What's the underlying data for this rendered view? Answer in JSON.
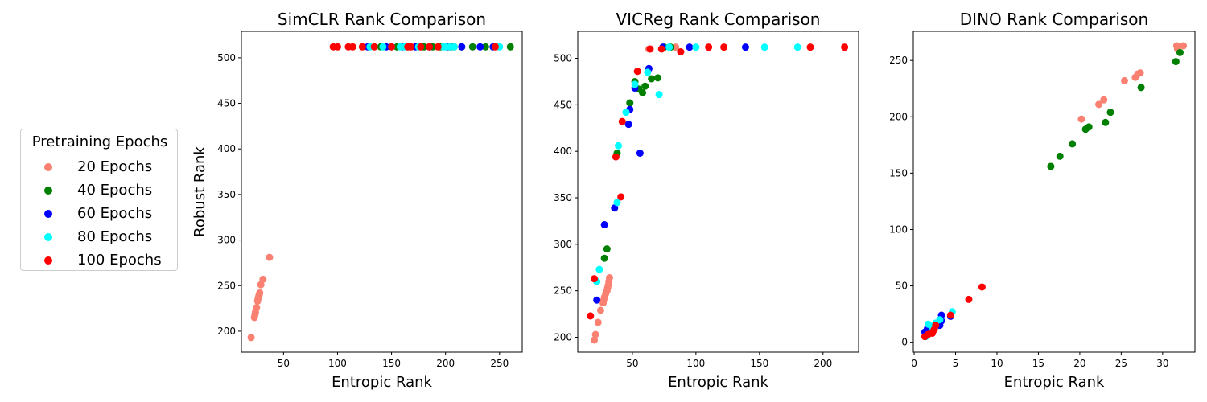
{
  "legend": {
    "title": "Pretraining Epochs",
    "entries": [
      {
        "label": "20 Epochs",
        "color": "#fa8072"
      },
      {
        "label": "40 Epochs",
        "color": "#008000"
      },
      {
        "label": "60 Epochs",
        "color": "#0000ff"
      },
      {
        "label": "80 Epochs",
        "color": "#00ffff"
      },
      {
        "label": "100 Epochs",
        "color": "#ff0000"
      }
    ]
  },
  "chart_data": [
    {
      "type": "scatter",
      "title": "SimCLR Rank Comparison",
      "xlabel": "Entropic Rank",
      "ylabel": "Robust Rank",
      "xlim": [
        11,
        271
      ],
      "ylim": [
        177,
        529
      ],
      "xticks": [
        50,
        100,
        150,
        200,
        250
      ],
      "yticks": [
        200,
        250,
        300,
        350,
        400,
        450,
        500
      ],
      "series": [
        {
          "name": "20 Epochs",
          "color": "#fa8072",
          "points": [
            [
              20,
              193
            ],
            [
              23,
              215
            ],
            [
              23.5,
              218
            ],
            [
              24,
              221
            ],
            [
              25,
              226
            ],
            [
              26,
              233
            ],
            [
              26.5,
              236
            ],
            [
              27,
              238
            ],
            [
              27.5,
              240
            ],
            [
              28,
              242
            ],
            [
              29,
              251
            ],
            [
              31,
              257
            ],
            [
              37,
              281
            ],
            [
              178,
              512
            ],
            [
              248,
              512
            ]
          ]
        },
        {
          "name": "40 Epochs",
          "color": "#008000",
          "points": [
            [
              140,
              512
            ],
            [
              155,
              512
            ],
            [
              165,
              512
            ],
            [
              180,
              512
            ],
            [
              188,
              512
            ],
            [
              195,
              512
            ],
            [
              205,
              512
            ],
            [
              208,
              512
            ],
            [
              215,
              512
            ],
            [
              225,
              512
            ],
            [
              237,
              512
            ],
            [
              260,
              512
            ]
          ]
        },
        {
          "name": "60 Epochs",
          "color": "#0000ff",
          "points": [
            [
              128,
              512
            ],
            [
              145,
              512
            ],
            [
              160,
              512
            ],
            [
              172,
              512
            ],
            [
              185,
              512
            ],
            [
              203,
              512
            ],
            [
              215,
              512
            ],
            [
              232,
              512
            ],
            [
              244,
              512
            ]
          ]
        },
        {
          "name": "80 Epochs",
          "color": "#00ffff",
          "points": [
            [
              130,
              512
            ],
            [
              142,
              512
            ],
            [
              150,
              512
            ],
            [
              158,
              512
            ],
            [
              162,
              512
            ],
            [
              175,
              512
            ],
            [
              198,
              512
            ],
            [
              200,
              512
            ],
            [
              204,
              512
            ],
            [
              208,
              512
            ],
            [
              250,
              512
            ]
          ]
        },
        {
          "name": "100 Epochs",
          "color": "#ff0000",
          "points": [
            [
              96,
              512
            ],
            [
              100,
              512
            ],
            [
              110,
              512
            ],
            [
              114,
              512
            ],
            [
              123,
              512
            ],
            [
              134,
              512
            ],
            [
              150,
              512
            ],
            [
              165,
              512
            ],
            [
              168,
              512
            ],
            [
              177,
              512
            ],
            [
              185,
              512
            ],
            [
              193,
              512
            ],
            [
              246,
              512
            ]
          ]
        }
      ]
    },
    {
      "type": "scatter",
      "title": "VICReg Rank Comparison",
      "xlabel": "Entropic Rank",
      "ylabel": "",
      "xlim": [
        7,
        228
      ],
      "ylim": [
        184,
        529
      ],
      "xticks": [
        50,
        100,
        150,
        200
      ],
      "yticks": [
        200,
        250,
        300,
        350,
        400,
        450,
        500
      ],
      "series": [
        {
          "name": "20 Epochs",
          "color": "#fa8072",
          "points": [
            [
              20,
              197
            ],
            [
              21,
              203
            ],
            [
              23,
              216
            ],
            [
              25,
              229
            ],
            [
              27,
              237
            ],
            [
              27.5,
              240
            ],
            [
              28,
              243
            ],
            [
              29,
              247
            ],
            [
              30,
              250
            ],
            [
              30.5,
              253
            ],
            [
              31,
              256
            ],
            [
              31.5,
              260
            ],
            [
              32,
              264
            ],
            [
              63,
              510
            ],
            [
              84,
              512
            ]
          ]
        },
        {
          "name": "40 Epochs",
          "color": "#008000",
          "points": [
            [
              28,
              285
            ],
            [
              30,
              295
            ],
            [
              38,
              398
            ],
            [
              48,
              452
            ],
            [
              52,
              475
            ],
            [
              55,
              467
            ],
            [
              58,
              463
            ],
            [
              60,
              470
            ],
            [
              65,
              478
            ],
            [
              70,
              479
            ],
            [
              75,
              512
            ],
            [
              80,
              512
            ]
          ]
        },
        {
          "name": "60 Epochs",
          "color": "#0000ff",
          "points": [
            [
              22,
              240
            ],
            [
              28,
              321
            ],
            [
              36,
              339
            ],
            [
              47,
              429
            ],
            [
              48,
              445
            ],
            [
              52,
              468
            ],
            [
              56,
              398
            ],
            [
              63,
              489
            ],
            [
              74,
              512
            ],
            [
              95,
              512
            ],
            [
              139,
              512
            ]
          ]
        },
        {
          "name": "80 Epochs",
          "color": "#00ffff",
          "points": [
            [
              22,
              260
            ],
            [
              24,
              273
            ],
            [
              38,
              345
            ],
            [
              39,
              406
            ],
            [
              45,
              442
            ],
            [
              52,
              472
            ],
            [
              62,
              485
            ],
            [
              71,
              461
            ],
            [
              79,
              512
            ],
            [
              100,
              512
            ],
            [
              154,
              512
            ],
            [
              180,
              512
            ]
          ]
        },
        {
          "name": "100 Epochs",
          "color": "#ff0000",
          "points": [
            [
              17,
              223
            ],
            [
              20,
              263
            ],
            [
              37,
              394
            ],
            [
              41,
              351
            ],
            [
              42,
              432
            ],
            [
              54,
              486
            ],
            [
              64,
              510
            ],
            [
              73,
              510
            ],
            [
              88,
              507
            ],
            [
              110,
              512
            ],
            [
              122,
              512
            ],
            [
              190,
              512
            ],
            [
              217,
              512
            ]
          ]
        }
      ]
    },
    {
      "type": "scatter",
      "title": "DINO Rank Comparison",
      "xlabel": "Entropic Rank",
      "ylabel": "",
      "xlim": [
        -0.1,
        33.9
      ],
      "ylim": [
        -8.8,
        275.8
      ],
      "xticks": [
        0,
        5,
        10,
        15,
        20,
        25,
        30
      ],
      "yticks": [
        0,
        50,
        100,
        150,
        200,
        250
      ],
      "series": [
        {
          "name": "20 Epochs",
          "color": "#fa8072",
          "points": [
            [
              1.5,
              6
            ],
            [
              2,
              9
            ],
            [
              2.5,
              12
            ],
            [
              3,
              15
            ],
            [
              20.2,
              198
            ],
            [
              22.3,
              211
            ],
            [
              22.9,
              215
            ],
            [
              25.4,
              232
            ],
            [
              26.7,
              235
            ],
            [
              27,
              238
            ],
            [
              27.3,
              239
            ],
            [
              31.7,
              263
            ],
            [
              32.5,
              263
            ],
            [
              31.8,
              260
            ]
          ]
        },
        {
          "name": "40 Epochs",
          "color": "#008000",
          "points": [
            [
              1.6,
              8
            ],
            [
              2.2,
              10
            ],
            [
              16.5,
              156
            ],
            [
              17.6,
              165
            ],
            [
              19.1,
              176
            ],
            [
              20.7,
              189
            ],
            [
              21.1,
              191
            ],
            [
              23.1,
              195
            ],
            [
              23.7,
              204
            ],
            [
              27.4,
              226
            ],
            [
              31.6,
              249
            ],
            [
              32.1,
              257
            ]
          ]
        },
        {
          "name": "60 Epochs",
          "color": "#0000ff",
          "points": [
            [
              1.3,
              9
            ],
            [
              1.6,
              12
            ],
            [
              1.8,
              10
            ],
            [
              2.1,
              13
            ],
            [
              2.4,
              11
            ],
            [
              3.1,
              15
            ],
            [
              3.3,
              19
            ],
            [
              3.3,
              24
            ],
            [
              4.4,
              23
            ]
          ]
        },
        {
          "name": "80 Epochs",
          "color": "#00ffff",
          "points": [
            [
              1.4,
              5
            ],
            [
              1.7,
              16
            ],
            [
              2.1,
              14
            ],
            [
              2.6,
              17
            ],
            [
              3.1,
              20
            ],
            [
              4.6,
              27
            ]
          ]
        },
        {
          "name": "100 Epochs",
          "color": "#ff0000",
          "points": [
            [
              1.3,
              5
            ],
            [
              1.7,
              7
            ],
            [
              2.2,
              8
            ],
            [
              2.4,
              11
            ],
            [
              2.6,
              15
            ],
            [
              4.4,
              24
            ],
            [
              6.6,
              38
            ],
            [
              8.2,
              49
            ]
          ]
        }
      ]
    }
  ]
}
